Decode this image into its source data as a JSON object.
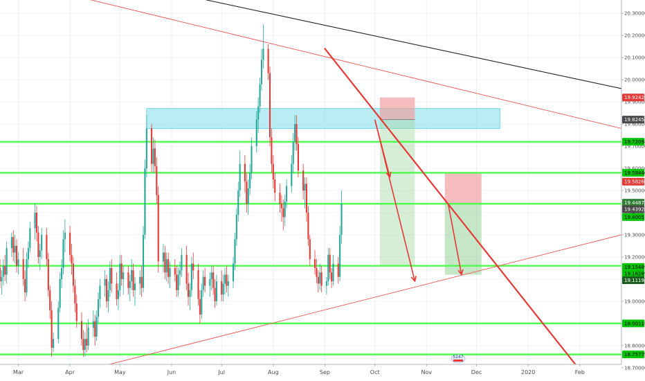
{
  "chart_data": {
    "type": "candlestick",
    "axis": {
      "ylim": [
        18.64,
        20.36
      ],
      "yticks": [
        {
          "value": 20.3,
          "label": "20.30000"
        },
        {
          "value": 20.2,
          "label": "20.20000"
        },
        {
          "value": 20.1,
          "label": "20.10000"
        },
        {
          "value": 20.0,
          "label": "20.00000"
        },
        {
          "value": 19.9,
          "label": "19.90000"
        },
        {
          "value": 19.8,
          "label": "19.80000"
        },
        {
          "value": 19.7,
          "label": "19.70000"
        },
        {
          "value": 19.6,
          "label": "19.60000"
        },
        {
          "value": 19.5,
          "label": "19.50000"
        },
        {
          "value": 19.4,
          "label": "19.40000"
        },
        {
          "value": 19.3,
          "label": "19.30000"
        },
        {
          "value": 19.2,
          "label": "19.20000"
        },
        {
          "value": 19.1,
          "label": "19.10000"
        },
        {
          "value": 19.0,
          "label": "19.00000"
        },
        {
          "value": 18.9,
          "label": "18.90000"
        },
        {
          "value": 18.8,
          "label": "18.80000"
        },
        {
          "value": 18.7,
          "label": "18.70000"
        }
      ],
      "xrange": [
        "2019-02-18",
        "2020-02-26"
      ],
      "xticks": [
        {
          "date": "2019-03-01",
          "label": "Mar"
        },
        {
          "date": "2019-04-01",
          "label": "Apr"
        },
        {
          "date": "2019-05-01",
          "label": "May"
        },
        {
          "date": "2019-06-01",
          "label": "Jun"
        },
        {
          "date": "2019-07-01",
          "label": "Jul"
        },
        {
          "date": "2019-08-01",
          "label": "Aug"
        },
        {
          "date": "2019-09-01",
          "label": "Sep"
        },
        {
          "date": "2019-10-01",
          "label": "Oct"
        },
        {
          "date": "2019-11-01",
          "label": "Nov"
        },
        {
          "date": "2019-12-01",
          "label": "Dec"
        },
        {
          "date": "2020-01-01",
          "label": "2020"
        },
        {
          "date": "2020-02-01",
          "label": "Feb"
        }
      ],
      "grid": true
    },
    "candles": {
      "start": "2019-02-18",
      "up_color": "#26a69a",
      "down_color": "#e53935",
      "ohlc": [
        [
          19.15,
          19.19,
          19.06,
          19.09
        ],
        [
          19.09,
          19.14,
          19.03,
          19.11
        ],
        [
          19.11,
          19.19,
          19.07,
          19.16
        ],
        [
          19.16,
          19.21,
          19.09,
          19.12
        ],
        [
          19.12,
          19.27,
          19.08,
          19.24
        ],
        [
          19.24,
          19.31,
          19.2,
          19.29
        ],
        [
          19.29,
          19.32,
          19.18,
          19.22
        ],
        [
          19.22,
          19.3,
          19.17,
          19.25
        ],
        [
          19.25,
          19.28,
          19.13,
          19.16
        ],
        [
          19.16,
          19.22,
          19.12,
          19.19
        ],
        [
          19.19,
          19.24,
          19.07,
          19.1
        ],
        [
          19.1,
          19.14,
          19.0,
          19.04
        ],
        [
          19.04,
          19.22,
          19.02,
          19.19
        ],
        [
          19.19,
          19.27,
          19.15,
          19.24
        ],
        [
          19.24,
          19.36,
          19.22,
          19.33
        ],
        [
          19.33,
          19.44,
          19.28,
          19.4
        ],
        [
          19.4,
          19.43,
          19.27,
          19.31
        ],
        [
          19.31,
          19.34,
          19.17,
          19.2
        ],
        [
          19.2,
          19.26,
          19.14,
          19.23
        ],
        [
          19.23,
          19.33,
          19.19,
          19.3
        ],
        [
          19.3,
          19.33,
          19.16,
          19.19
        ],
        [
          19.19,
          19.22,
          19.02,
          19.05
        ],
        [
          19.05,
          19.07,
          18.92,
          18.96
        ],
        [
          18.96,
          19.0,
          18.75,
          18.79
        ],
        [
          18.79,
          18.86,
          18.77,
          18.83
        ],
        [
          18.83,
          19.0,
          18.81,
          18.97
        ],
        [
          18.97,
          19.13,
          18.95,
          19.1
        ],
        [
          19.1,
          19.19,
          19.06,
          19.15
        ],
        [
          19.15,
          19.32,
          19.12,
          19.28
        ],
        [
          19.28,
          19.37,
          19.22,
          19.31
        ],
        [
          19.31,
          19.34,
          19.18,
          19.21
        ],
        [
          19.21,
          19.26,
          19.12,
          19.17
        ],
        [
          19.17,
          19.2,
          19.04,
          19.07
        ],
        [
          19.07,
          19.1,
          18.95,
          18.99
        ],
        [
          18.99,
          19.03,
          18.88,
          18.91
        ],
        [
          18.91,
          18.95,
          18.8,
          18.83
        ],
        [
          18.83,
          18.87,
          18.75,
          18.78
        ],
        [
          18.78,
          18.86,
          18.75,
          18.83
        ],
        [
          18.83,
          18.9,
          18.77,
          18.8
        ],
        [
          18.8,
          18.92,
          18.78,
          18.88
        ],
        [
          18.88,
          18.96,
          18.84,
          18.91
        ],
        [
          18.91,
          18.94,
          18.8,
          18.84
        ],
        [
          18.84,
          18.96,
          18.82,
          18.93
        ],
        [
          18.93,
          19.04,
          18.9,
          19.01
        ],
        [
          19.01,
          19.1,
          18.97,
          19.07
        ],
        [
          19.07,
          19.14,
          19.02,
          19.1
        ],
        [
          19.1,
          19.12,
          18.97,
          19.0
        ],
        [
          19.0,
          19.09,
          18.95,
          19.05
        ],
        [
          19.05,
          19.18,
          19.02,
          19.15
        ],
        [
          19.15,
          19.19,
          19.04,
          19.08
        ],
        [
          19.08,
          19.13,
          18.98,
          19.01
        ],
        [
          19.01,
          19.08,
          18.96,
          19.05
        ],
        [
          19.05,
          19.21,
          19.02,
          19.17
        ],
        [
          19.17,
          19.21,
          19.07,
          19.1
        ],
        [
          19.1,
          19.16,
          19.03,
          19.13
        ],
        [
          19.13,
          19.16,
          19.03,
          19.06
        ],
        [
          19.06,
          19.12,
          19.0,
          19.09
        ],
        [
          19.09,
          19.19,
          19.05,
          19.14
        ],
        [
          19.14,
          19.17,
          19.02,
          19.05
        ],
        [
          19.05,
          19.11,
          18.98,
          19.08
        ],
        [
          19.08,
          19.14,
          19.03,
          19.11
        ],
        [
          19.11,
          19.16,
          19.02,
          19.06
        ],
        [
          19.06,
          19.34,
          19.04,
          19.3
        ],
        [
          19.3,
          19.64,
          19.28,
          19.6
        ],
        [
          19.6,
          19.84,
          19.56,
          19.78
        ],
        [
          19.78,
          19.8,
          19.58,
          19.62
        ],
        [
          19.62,
          19.74,
          19.58,
          19.69
        ],
        [
          19.69,
          19.73,
          19.58,
          19.61
        ],
        [
          19.61,
          19.65,
          19.44,
          19.48
        ],
        [
          19.48,
          19.52,
          19.13,
          19.18
        ],
        [
          19.18,
          19.26,
          19.13,
          19.22
        ],
        [
          19.22,
          19.25,
          19.1,
          19.13
        ],
        [
          19.13,
          19.22,
          19.09,
          19.19
        ],
        [
          19.19,
          19.22,
          19.08,
          19.11
        ],
        [
          19.11,
          19.18,
          19.06,
          19.15
        ],
        [
          19.15,
          19.19,
          19.09,
          19.12
        ],
        [
          19.12,
          19.16,
          19.02,
          19.05
        ],
        [
          19.05,
          19.15,
          19.02,
          19.12
        ],
        [
          19.12,
          19.18,
          19.07,
          19.14
        ],
        [
          19.14,
          19.24,
          19.11,
          19.21
        ],
        [
          19.21,
          19.25,
          19.05,
          19.08
        ],
        [
          19.08,
          19.13,
          18.98,
          19.02
        ],
        [
          19.02,
          19.08,
          18.96,
          19.05
        ],
        [
          19.05,
          19.2,
          19.02,
          19.17
        ],
        [
          19.17,
          19.22,
          19.1,
          19.14
        ],
        [
          19.14,
          19.17,
          18.98,
          19.01
        ],
        [
          19.01,
          19.05,
          18.9,
          18.94
        ],
        [
          18.94,
          19.08,
          18.92,
          19.05
        ],
        [
          19.05,
          19.14,
          19.02,
          19.11
        ],
        [
          19.11,
          19.15,
          19.04,
          19.07
        ],
        [
          19.07,
          19.13,
          19.02,
          19.1
        ],
        [
          19.1,
          19.16,
          19.05,
          19.13
        ],
        [
          19.13,
          19.16,
          19.03,
          19.06
        ],
        [
          19.06,
          19.1,
          18.97,
          19.0
        ],
        [
          19.0,
          19.12,
          18.98,
          19.09
        ],
        [
          19.09,
          19.14,
          19.0,
          19.03
        ],
        [
          19.03,
          19.12,
          19.0,
          19.08
        ],
        [
          19.08,
          19.15,
          19.03,
          19.12
        ],
        [
          19.12,
          19.16,
          19.04,
          19.07
        ],
        [
          19.07,
          19.12,
          19.02,
          19.09
        ],
        [
          19.09,
          19.2,
          19.06,
          19.17
        ],
        [
          19.17,
          19.31,
          19.14,
          19.28
        ],
        [
          19.28,
          19.42,
          19.25,
          19.39
        ],
        [
          19.39,
          19.54,
          19.36,
          19.5
        ],
        [
          19.5,
          19.68,
          19.47,
          19.62
        ],
        [
          19.62,
          19.66,
          19.49,
          19.54
        ],
        [
          19.54,
          19.58,
          19.4,
          19.44
        ],
        [
          19.44,
          19.55,
          19.39,
          19.51
        ],
        [
          19.51,
          19.62,
          19.48,
          19.58
        ],
        [
          19.58,
          19.74,
          19.55,
          19.7
        ],
        [
          19.7,
          19.86,
          19.67,
          19.82
        ],
        [
          19.82,
          19.92,
          19.76,
          19.88
        ],
        [
          19.88,
          20.01,
          19.85,
          19.98
        ],
        [
          19.98,
          20.14,
          19.95,
          20.09
        ],
        [
          20.09,
          20.25,
          20.05,
          20.14
        ],
        [
          20.14,
          20.16,
          20.0,
          20.03
        ],
        [
          20.03,
          20.06,
          19.7,
          19.74
        ],
        [
          19.74,
          19.78,
          19.58,
          19.62
        ],
        [
          19.62,
          19.66,
          19.51,
          19.55
        ],
        [
          19.55,
          19.58,
          19.45,
          19.49
        ],
        [
          19.49,
          19.53,
          19.4,
          19.44
        ],
        [
          19.44,
          19.48,
          19.36,
          19.42
        ],
        [
          19.42,
          19.46,
          19.32,
          19.38
        ],
        [
          19.38,
          19.48,
          19.34,
          19.45
        ],
        [
          19.45,
          19.55,
          19.42,
          19.52
        ],
        [
          19.52,
          19.66,
          19.49,
          19.62
        ],
        [
          19.62,
          19.76,
          19.58,
          19.72
        ],
        [
          19.72,
          19.84,
          19.68,
          19.8
        ],
        [
          19.8,
          19.84,
          19.68,
          19.71
        ],
        [
          19.71,
          19.74,
          19.56,
          19.59
        ],
        [
          19.59,
          19.62,
          19.46,
          19.5
        ],
        [
          19.5,
          19.56,
          19.42,
          19.53
        ],
        [
          19.53,
          19.56,
          19.36,
          19.4
        ],
        [
          19.4,
          19.43,
          19.25,
          19.28
        ],
        [
          19.28,
          19.3,
          19.16,
          19.19
        ],
        [
          19.19,
          19.23,
          19.12,
          19.15
        ],
        [
          19.15,
          19.19,
          19.08,
          19.11
        ],
        [
          19.11,
          19.14,
          19.04,
          19.08
        ],
        [
          19.08,
          19.17,
          19.05,
          19.13
        ],
        [
          19.13,
          19.16,
          19.04,
          19.07
        ],
        [
          19.07,
          19.11,
          19.03,
          19.09
        ],
        [
          19.09,
          19.24,
          19.07,
          19.21
        ],
        [
          19.21,
          19.24,
          19.1,
          19.13
        ],
        [
          19.13,
          19.15,
          19.06,
          19.09
        ],
        [
          19.09,
          19.21,
          19.07,
          19.17
        ],
        [
          19.17,
          19.2,
          19.08,
          19.11
        ],
        [
          19.11,
          19.34,
          19.09,
          19.3
        ],
        [
          19.3,
          19.5,
          19.26,
          19.44
        ]
      ]
    },
    "overlays": {
      "resistance_zone": {
        "from_date": "2019-05-17",
        "to_date": "2019-12-15",
        "top": 19.87,
        "bottom": 19.78,
        "color": "#80deea"
      },
      "horizontal_levels": [
        19.72,
        19.58,
        19.44,
        19.16,
        18.9,
        18.76
      ],
      "level_color": "#4cff4c",
      "trendlines": [
        {
          "p1": {
            "date": "2019-02-18",
            "value": 20.46
          },
          "p2": {
            "date": "2020-02-26",
            "value": 19.78
          },
          "color": "#ef5350",
          "width": 0.9
        },
        {
          "p1": {
            "date": "2019-06-22",
            "value": 20.36
          },
          "p2": {
            "date": "2020-02-26",
            "value": 19.96
          },
          "color": "#212121",
          "width": 1.1
        },
        {
          "p1": {
            "date": "2019-04-01",
            "value": 18.67
          },
          "p2": {
            "date": "2020-02-26",
            "value": 19.3
          },
          "color": "#ef5350",
          "width": 0.9
        },
        {
          "p1": {
            "date": "2019-09-01",
            "value": 20.14
          },
          "p2": {
            "date": "2020-02-01",
            "value": 18.69
          },
          "color": "#e53935",
          "width": 2.2
        }
      ],
      "arrows": [
        {
          "p1": {
            "date": "2019-10-01",
            "value": 19.82
          },
          "p2": {
            "date": "2019-10-25",
            "value": 19.09
          }
        },
        {
          "p1": {
            "date": "2019-11-14",
            "value": 19.44
          },
          "p2": {
            "date": "2019-11-22",
            "value": 19.12
          }
        },
        {
          "p1": {
            "date": "2019-10-01",
            "value": 19.82
          },
          "p2": {
            "date": "2019-10-10",
            "value": 19.56
          }
        }
      ],
      "arrow_color": "#e53935",
      "positions": [
        {
          "from_date": "2019-10-04",
          "to_date": "2019-10-25",
          "stop": 19.92,
          "entry": 19.82,
          "target": 19.16,
          "stop_color": "#ef9a9a",
          "target_color": "#a5d6a7"
        },
        {
          "from_date": "2019-11-12",
          "to_date": "2019-12-04",
          "stop": 19.58,
          "entry": 19.44,
          "target": 19.12,
          "stop_color": "#ef9a9a",
          "target_color": "#81c784"
        }
      ]
    },
    "price_tags": [
      {
        "value": 19.92,
        "label": "19.92425",
        "bg": "#e53935",
        "fg": "#ffffff"
      },
      {
        "value": 19.82,
        "label": "19.82458",
        "bg": "#4a4a4a",
        "fg": "#ffffff"
      },
      {
        "value": 19.72,
        "label": "19.72098",
        "bg": "#00c400",
        "fg": "#000000"
      },
      {
        "value": 19.58,
        "label": "19.58440",
        "bg": "#00c400",
        "fg": "#000000"
      },
      {
        "value": 19.54,
        "label": "19.58266",
        "bg": "#e53935",
        "fg": "#ffffff"
      },
      {
        "value": 19.445,
        "label": "19.44876",
        "bg": "#2e7d32",
        "fg": "#ffffff"
      },
      {
        "value": 19.415,
        "label": "19.43921",
        "bg": "#4a4a4a",
        "fg": "#ffffff"
      },
      {
        "value": 19.38,
        "label": "19.40051",
        "bg": "#00c400",
        "fg": "#000000"
      },
      {
        "value": 19.155,
        "label": "19.15489",
        "bg": "#00c400",
        "fg": "#000000"
      },
      {
        "value": 19.125,
        "label": "19.16289",
        "bg": "#00c400",
        "fg": "#000000"
      },
      {
        "value": 19.095,
        "label": "19.11196",
        "bg": "#1b5e20",
        "fg": "#ffffff"
      },
      {
        "value": 18.9,
        "label": "18.90117",
        "bg": "#00c400",
        "fg": "#000000"
      },
      {
        "value": 18.76,
        "label": "18.75779",
        "bg": "#00c400",
        "fg": "#000000"
      }
    ],
    "watermark": {
      "text": "5247",
      "date": "2019-11-20"
    }
  }
}
